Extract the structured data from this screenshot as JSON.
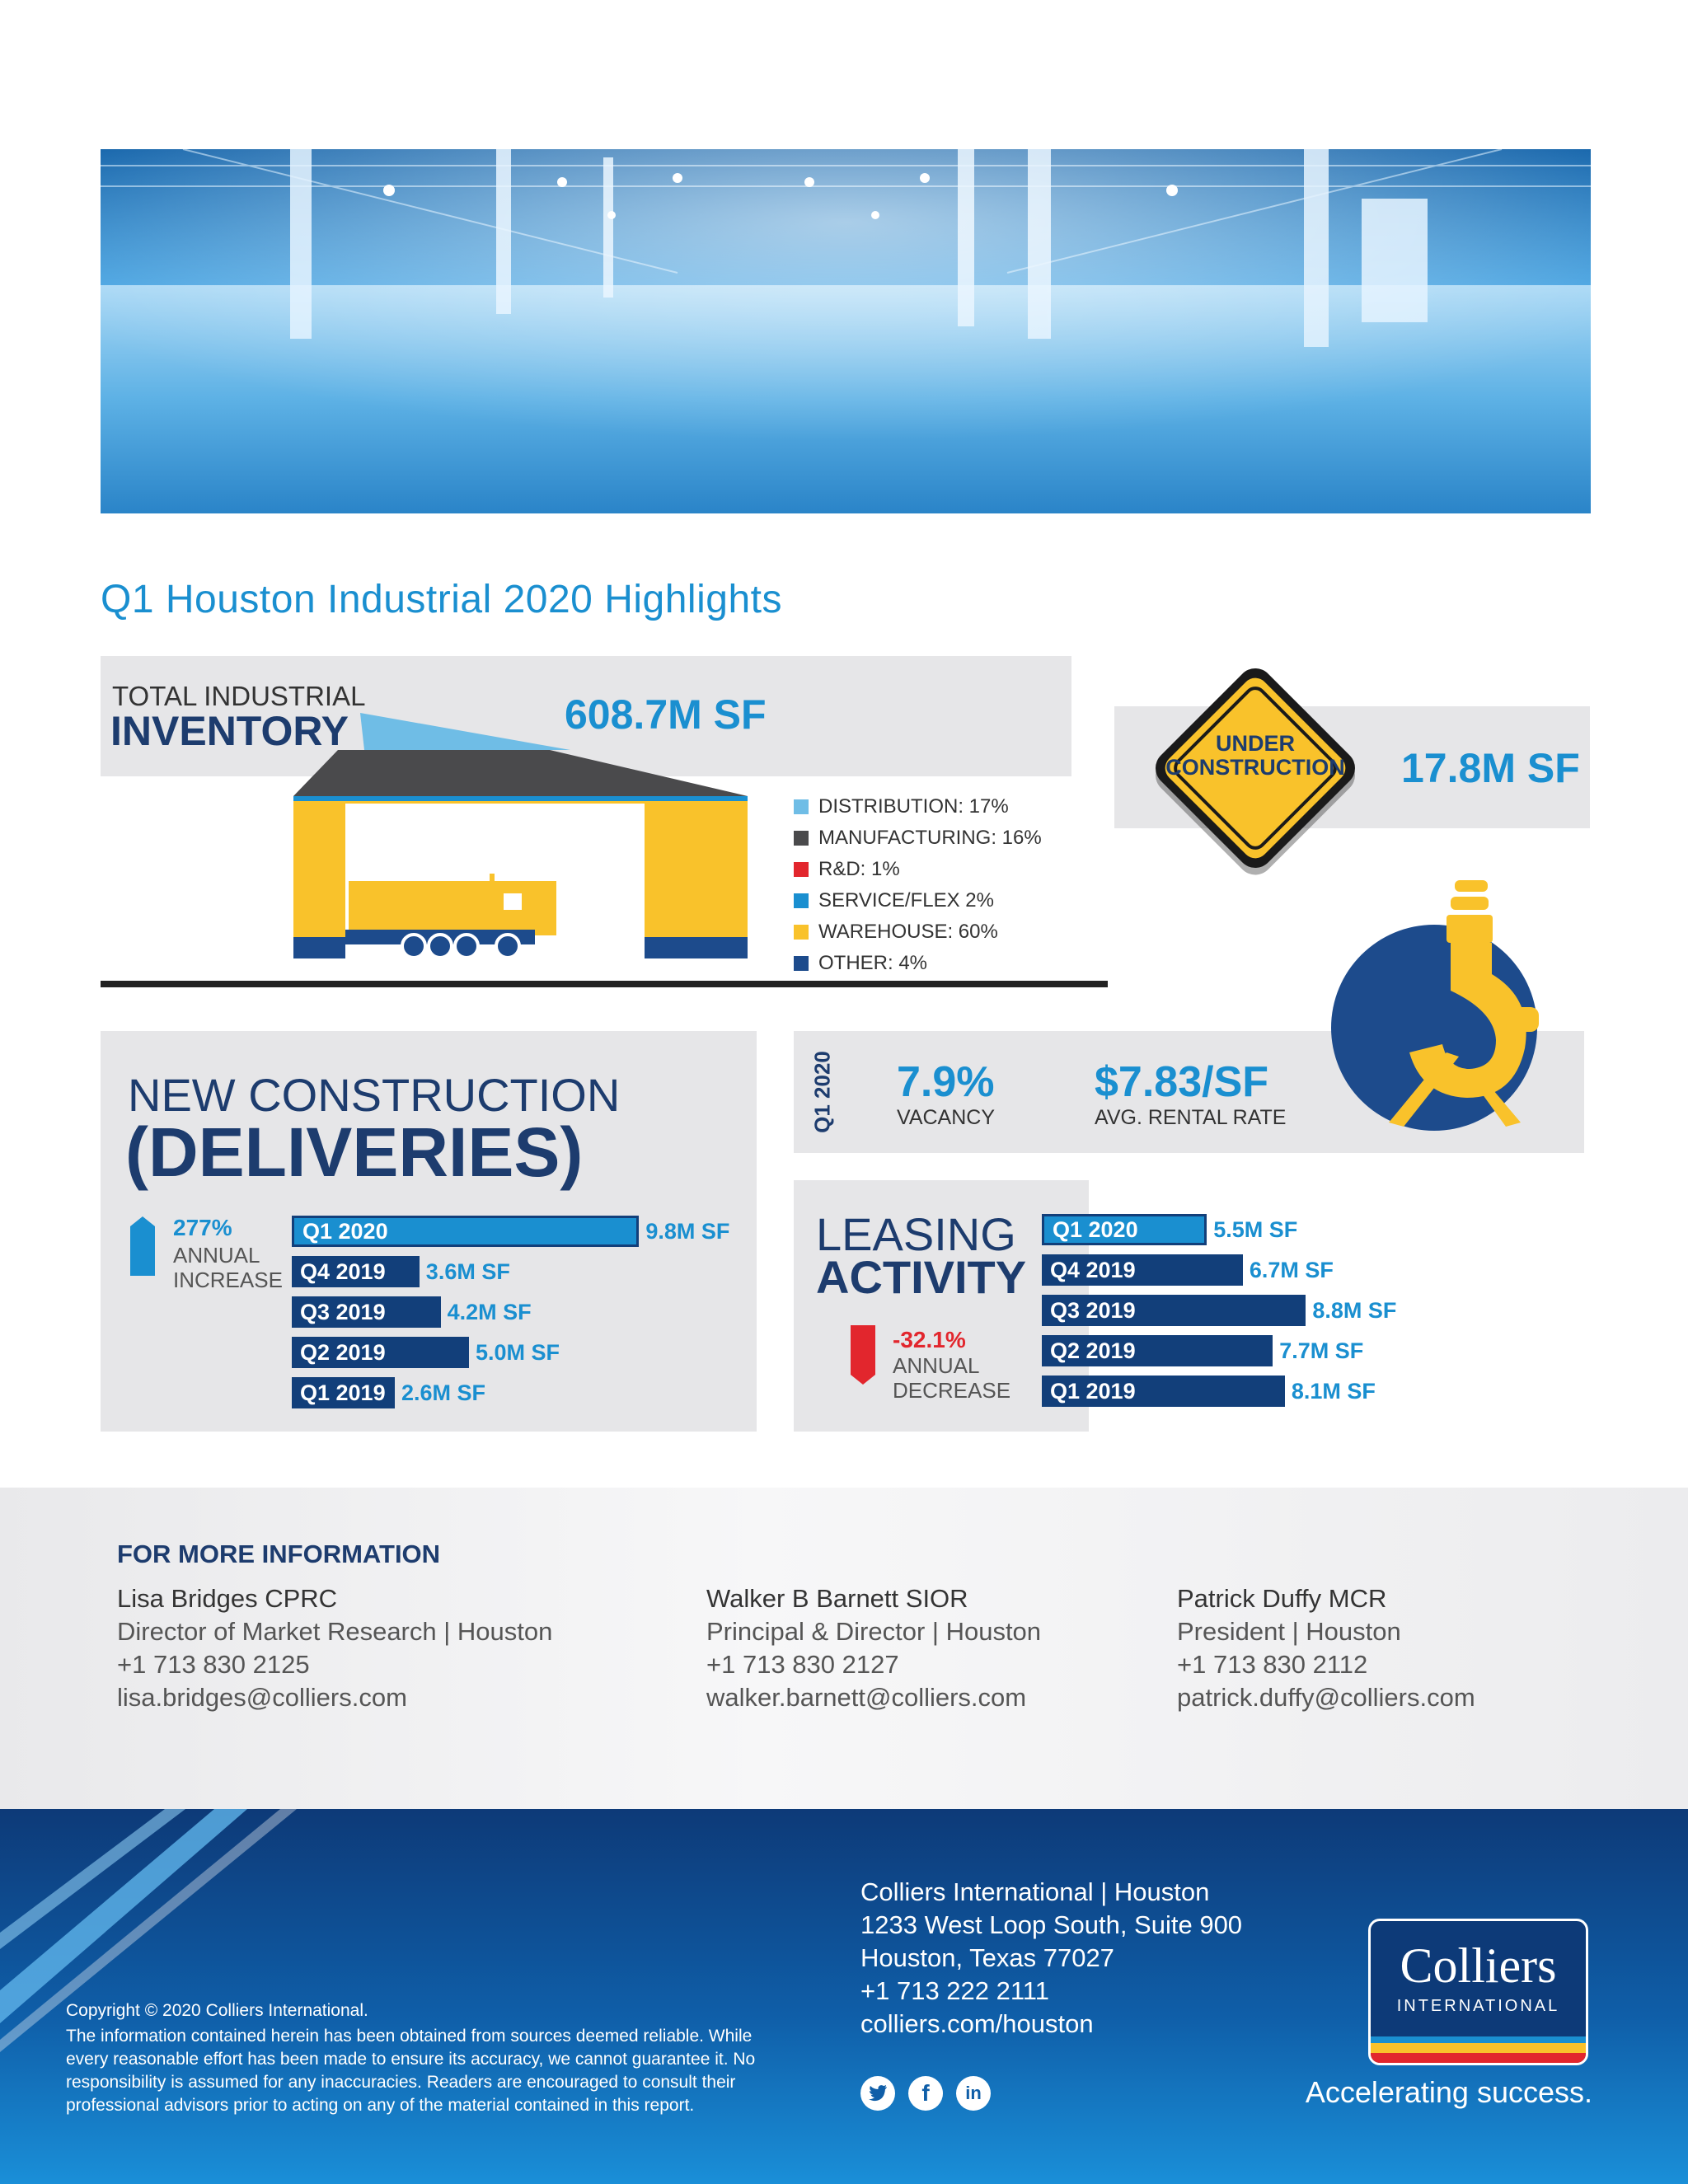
{
  "highlights_title": "Q1 Houston Industrial 2020 Highlights",
  "inventory": {
    "label_top": "TOTAL INDUSTRIAL",
    "label_main": "INVENTORY",
    "value": "608.7M SF",
    "legend": [
      {
        "label": "DISTRIBUTION: 17%",
        "color": "#6fbde6"
      },
      {
        "label": "MANUFACTURING: 16%",
        "color": "#4a4a4c"
      },
      {
        "label": "R&D: 1%",
        "color": "#e2262d"
      },
      {
        "label": "SERVICE/FLEX 2%",
        "color": "#1a8fd0"
      },
      {
        "label": "WAREHOUSE: 60%",
        "color": "#f9c22b"
      },
      {
        "label": "OTHER: 4%",
        "color": "#1d4b8c"
      }
    ]
  },
  "under_construction": {
    "sign_line1": "UNDER",
    "sign_line2": "CONSTRUCTION",
    "value": "17.8M SF"
  },
  "new_construction": {
    "line1": "NEW CONSTRUCTION",
    "line2": "(DELIVERIES)",
    "change": "277%",
    "change_label1": "ANNUAL",
    "change_label2": "INCREASE",
    "bars": [
      {
        "label": "Q1 2020",
        "value": 9.8,
        "text": "9.8M SF",
        "highlight": true
      },
      {
        "label": "Q4 2019",
        "value": 3.6,
        "text": "3.6M SF",
        "highlight": false
      },
      {
        "label": "Q3 2019",
        "value": 4.2,
        "text": "4.2M SF",
        "highlight": false
      },
      {
        "label": "Q2 2019",
        "value": 5.0,
        "text": "5.0M SF",
        "highlight": false
      },
      {
        "label": "Q1 2019",
        "value": 2.6,
        "text": "2.6M SF",
        "highlight": false
      }
    ]
  },
  "q1_stats": {
    "period": "Q1 2020",
    "vacancy_value": "7.9%",
    "vacancy_label": "VACANCY",
    "rent_value": "$7.83/SF",
    "rent_label": "AVG. RENTAL RATE"
  },
  "leasing": {
    "line1": "LEASING",
    "line2": "ACTIVITY",
    "change": "-32.1%",
    "change_label1": "ANNUAL",
    "change_label2": "DECREASE",
    "bars": [
      {
        "label": "Q1 2020",
        "value": 5.5,
        "text": "5.5M SF",
        "highlight": true
      },
      {
        "label": "Q4 2019",
        "value": 6.7,
        "text": "6.7M SF",
        "highlight": false
      },
      {
        "label": "Q3 2019",
        "value": 8.8,
        "text": "8.8M SF",
        "highlight": false
      },
      {
        "label": "Q2 2019",
        "value": 7.7,
        "text": "7.7M SF",
        "highlight": false
      },
      {
        "label": "Q1 2019",
        "value": 8.1,
        "text": "8.1M SF",
        "highlight": false
      }
    ]
  },
  "contacts": {
    "heading": "FOR MORE INFORMATION",
    "people": [
      {
        "name": "Lisa Bridges CPRC",
        "title": "Director of Market Research | Houston",
        "phone": "+1 713 830 2125",
        "email": "lisa.bridges@colliers.com"
      },
      {
        "name": "Walker B Barnett SIOR",
        "title": "Principal & Director | Houston",
        "phone": "+1 713 830 2127",
        "email": "walker.barnett@colliers.com"
      },
      {
        "name": "Patrick Duffy MCR",
        "title": "President | Houston",
        "phone": "+1 713 830 2112",
        "email": "patrick.duffy@colliers.com"
      }
    ]
  },
  "footer": {
    "copyright": "Copyright © 2020 Colliers International.",
    "disclaimer": "The information contained herein has been obtained from sources deemed reliable. While every reasonable effort has been made to ensure its accuracy, we cannot guarantee it. No responsibility is assumed for any inaccuracies. Readers are encouraged to consult their professional advisors prior to acting on any of the material contained in this report.",
    "address": [
      "Colliers International | Houston",
      "1233 West Loop South, Suite 900",
      "Houston, Texas 77027",
      "+1 713 222 2111",
      "colliers.com/houston"
    ],
    "logo_main": "Colliers",
    "logo_sub": "INTERNATIONAL",
    "tagline": "Accelerating success.",
    "social": [
      "twitter-icon",
      "facebook-icon",
      "linkedin-icon"
    ]
  },
  "colors": {
    "navy": "#1d3c6e",
    "bar_navy": "#123f7a",
    "bar_blue": "#1a8fd0",
    "accent_blue": "#1a8fd0",
    "yellow": "#f9c22b",
    "red": "#e2262d"
  }
}
